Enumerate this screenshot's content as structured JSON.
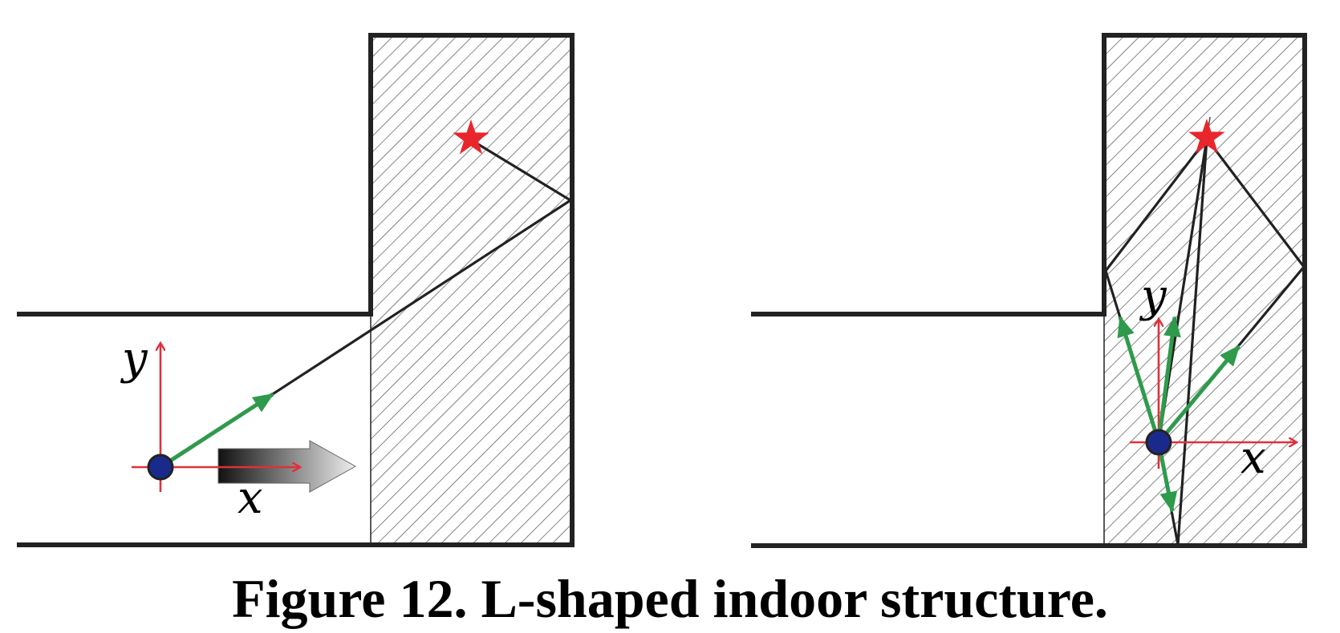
{
  "caption": "Figure 12. L-shaped indoor structure.",
  "left_panel": {
    "x_label": "x",
    "y_label": "y"
  },
  "right_panel": {
    "x_label": "x",
    "y_label": "y"
  },
  "colors": {
    "wall": "#222222",
    "ray": "#222222",
    "axis": "#e0303a",
    "heading_arrow": "#2f9a4c",
    "target_star": "#e8262c",
    "device_dot": "#1a2a8c",
    "hatch": "#444444",
    "motion_arrow_start": "#111111",
    "motion_arrow_end": "#eeeeee"
  }
}
